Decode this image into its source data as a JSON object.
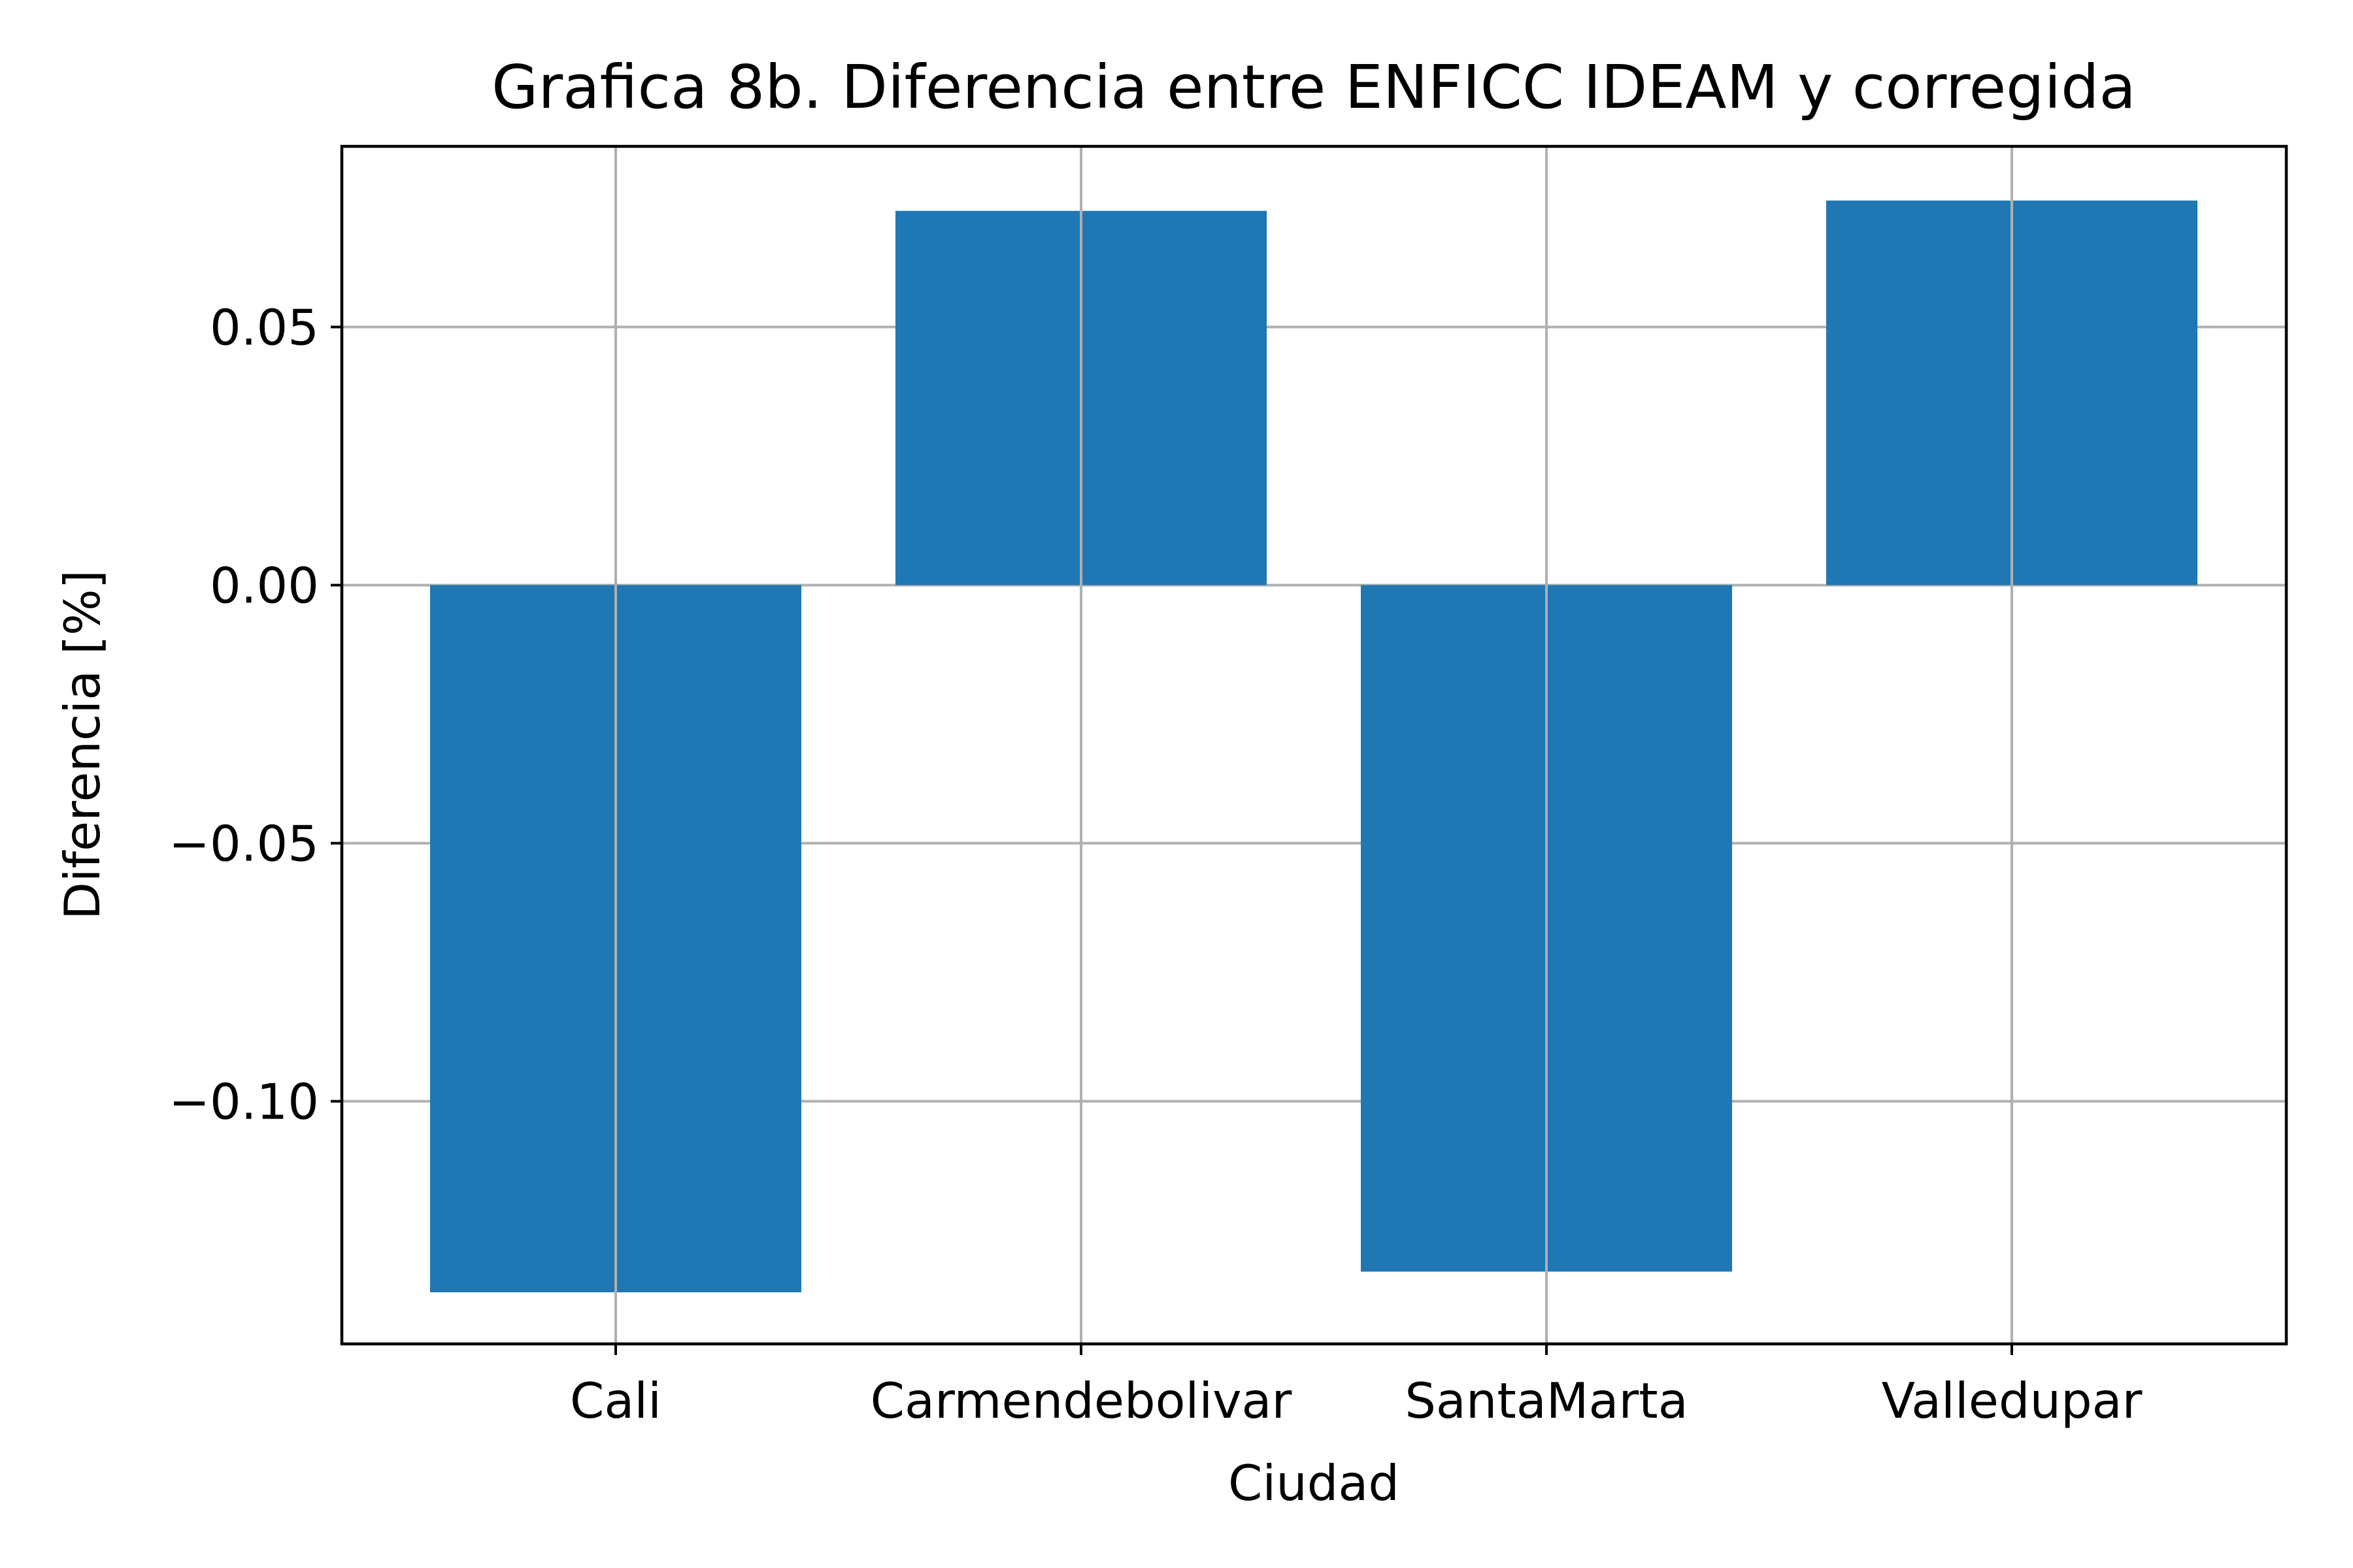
{
  "chart_data": {
    "type": "bar",
    "title": "Grafica 8b. Diferencia entre ENFICC IDEAM y corregida",
    "xlabel": "Ciudad",
    "ylabel": "Diferencia [%]",
    "categories": [
      "Cali",
      "Carmendebolivar",
      "SantaMarta",
      "Valledupar"
    ],
    "values": [
      -0.137,
      0.0725,
      -0.133,
      0.0745
    ],
    "ylim": [
      -0.147,
      0.085
    ],
    "yticks": [
      -0.1,
      -0.05,
      0.0,
      0.05
    ],
    "ytick_labels": [
      "−0.10",
      "−0.05",
      "0.00",
      "0.05"
    ],
    "grid": true,
    "bar_color": "#1f77b4"
  }
}
